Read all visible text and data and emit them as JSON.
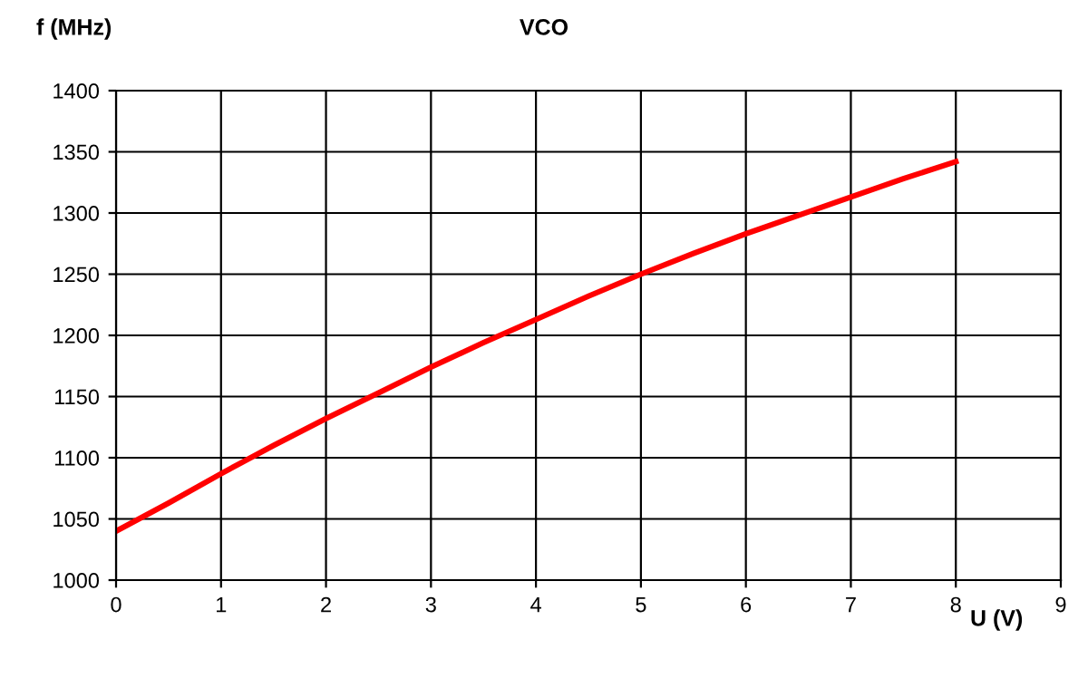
{
  "chart_data": {
    "type": "line",
    "title": "VCO",
    "xlabel": "U (V)",
    "ylabel": "f (MHz)",
    "x": [
      0,
      0.5,
      1,
      1.5,
      2,
      2.5,
      3,
      3.5,
      4,
      4.5,
      5,
      5.5,
      6,
      6.5,
      7,
      7.5,
      8
    ],
    "series": [
      {
        "color": "#ff0000",
        "values": [
          1040,
          1063,
          1087,
          1110,
          1132,
          1153,
          1174,
          1194,
          1213,
          1232,
          1250,
          1267,
          1283,
          1298,
          1313,
          1328,
          1342
        ]
      }
    ],
    "xlim": [
      0,
      9
    ],
    "xticks": [
      0,
      1,
      2,
      3,
      4,
      5,
      6,
      7,
      8,
      9
    ],
    "ylim": [
      1000,
      1400
    ],
    "yticks": [
      1000,
      1050,
      1100,
      1150,
      1200,
      1250,
      1300,
      1350,
      1400
    ],
    "grid": true,
    "legend": false,
    "marker": "none",
    "line_style": "solid"
  }
}
